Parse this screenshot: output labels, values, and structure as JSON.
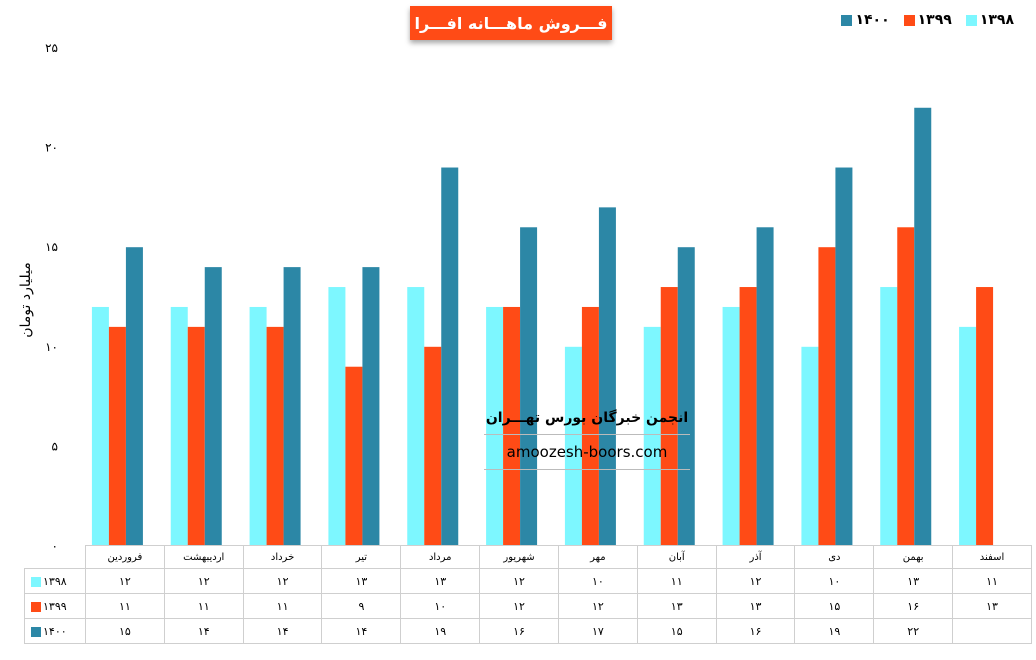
{
  "title": "فـــروش ماهـــانه افـــرا",
  "ylabel": "میلیارد تومان",
  "watermark": {
    "name": "انجمن خبرگان بورس تهـــران",
    "url": "amoozesh-boors.com"
  },
  "colors": {
    "title_bg": "#ff4b16"
  },
  "chart_data": {
    "type": "bar",
    "title": "فـــروش ماهـــانه افـــرا",
    "ylabel": "میلیارد تومان",
    "ylim": [
      0,
      25
    ],
    "yticks": [
      "۰",
      "۵",
      "۱۰",
      "۱۵",
      "۲۰",
      "۲۵"
    ],
    "ytick_values": [
      0,
      5,
      10,
      15,
      20,
      25
    ],
    "categories": [
      "فروردین",
      "اردیبهشت",
      "خرداد",
      "تیر",
      "مرداد",
      "شهریور",
      "مهر",
      "آبان",
      "آذر",
      "دی",
      "بهمن",
      "اسفند"
    ],
    "legend_position": "top-right",
    "series": [
      {
        "name": "۱۳۹۸",
        "color": "#7df7ff",
        "values": [
          12,
          12,
          12,
          13,
          13,
          12,
          10,
          11,
          12,
          10,
          13,
          11
        ],
        "labels": [
          "۱۲",
          "۱۲",
          "۱۲",
          "۱۳",
          "۱۳",
          "۱۲",
          "۱۰",
          "۱۱",
          "۱۲",
          "۱۰",
          "۱۳",
          "۱۱"
        ]
      },
      {
        "name": "۱۳۹۹",
        "color": "#ff4b16",
        "values": [
          11,
          11,
          11,
          9,
          10,
          12,
          12,
          13,
          13,
          15,
          16,
          13
        ],
        "labels": [
          "۱۱",
          "۱۱",
          "۱۱",
          "۹",
          "۱۰",
          "۱۲",
          "۱۲",
          "۱۳",
          "۱۳",
          "۱۵",
          "۱۶",
          "۱۳"
        ]
      },
      {
        "name": "۱۴۰۰",
        "color": "#2c87a6",
        "values": [
          15,
          14,
          14,
          14,
          19,
          16,
          17,
          15,
          16,
          19,
          22,
          null
        ],
        "labels": [
          "۱۵",
          "۱۴",
          "۱۴",
          "۱۴",
          "۱۹",
          "۱۶",
          "۱۷",
          "۱۵",
          "۱۶",
          "۱۹",
          "۲۲",
          ""
        ]
      }
    ]
  }
}
